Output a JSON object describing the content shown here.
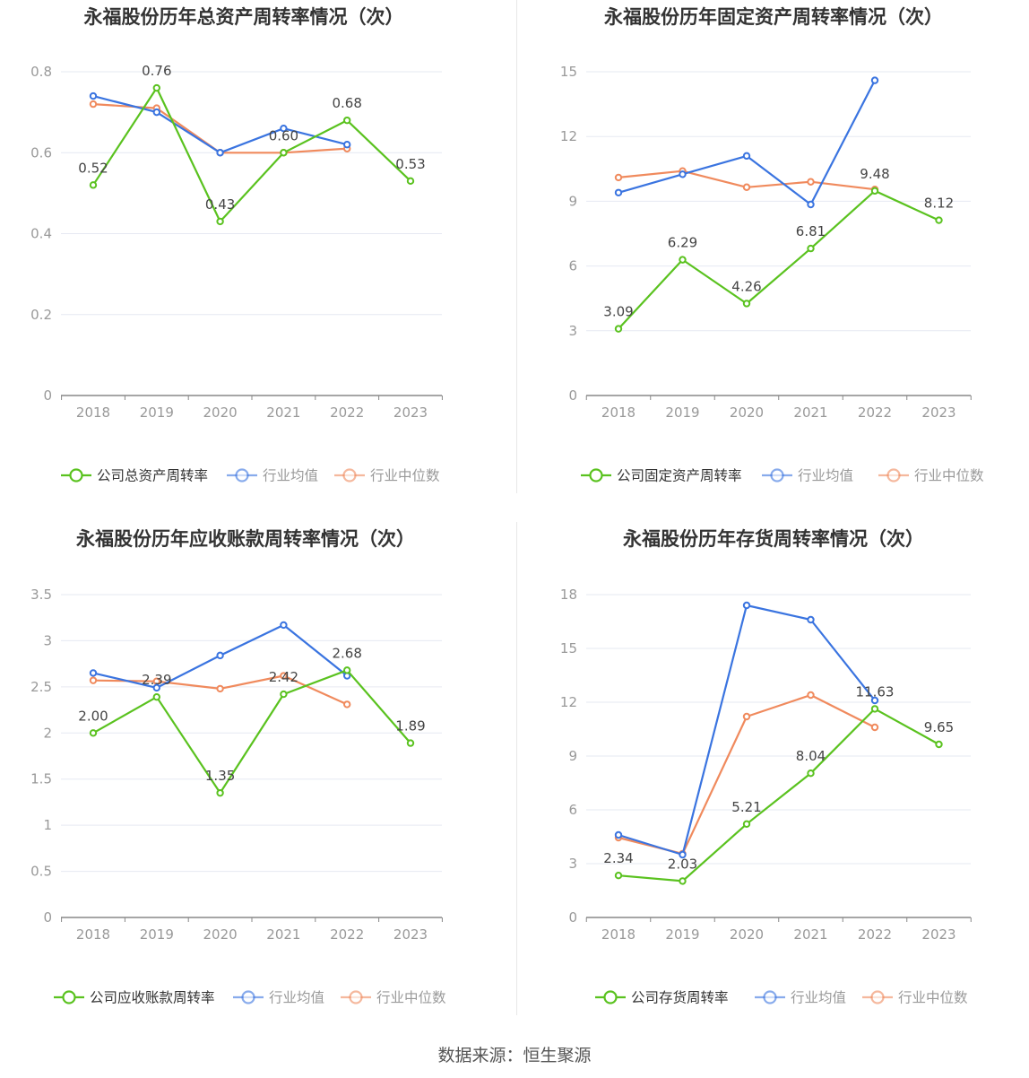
{
  "colors": {
    "company": "#5ac21f",
    "avg": "#3a74e0",
    "median": "#f08a5d",
    "grid": "#e6e9f2",
    "axis": "#888888",
    "tick": "#999999",
    "title": "#333333",
    "label": "#444444"
  },
  "source": "数据来源：恒生聚源",
  "chart_data": [
    {
      "type": "line",
      "title": "永福股份历年总资产周转率情况（次）",
      "categories": [
        "2018",
        "2019",
        "2020",
        "2021",
        "2022",
        "2023"
      ],
      "ylim": [
        0,
        0.8
      ],
      "yticks": [
        "0",
        "0.2",
        "0.4",
        "0.6",
        "0.8"
      ],
      "yticks_values": [
        0,
        0.2,
        0.4,
        0.6,
        0.8
      ],
      "series": [
        {
          "key": "company",
          "name": "公司总资产周转率",
          "values": [
            0.52,
            0.76,
            0.43,
            0.6,
            0.68,
            0.53
          ],
          "labels": [
            "0.52",
            "0.76",
            "0.43",
            "0.60",
            "0.68",
            "0.53"
          ]
        },
        {
          "key": "avg",
          "name": "行业均值",
          "values": [
            0.74,
            0.7,
            0.6,
            0.66,
            0.62,
            null
          ]
        },
        {
          "key": "median",
          "name": "行业中位数",
          "values": [
            0.72,
            0.71,
            0.6,
            0.6,
            0.61,
            null
          ]
        }
      ]
    },
    {
      "type": "line",
      "title": "永福股份历年固定资产周转率情况（次）",
      "categories": [
        "2018",
        "2019",
        "2020",
        "2021",
        "2022",
        "2023"
      ],
      "ylim": [
        0,
        15
      ],
      "yticks": [
        "0",
        "3",
        "6",
        "9",
        "12",
        "15"
      ],
      "yticks_values": [
        0,
        3,
        6,
        9,
        12,
        15
      ],
      "series": [
        {
          "key": "company",
          "name": "公司固定资产周转率",
          "values": [
            3.09,
            6.29,
            4.26,
            6.81,
            9.48,
            8.12
          ],
          "labels": [
            "3.09",
            "6.29",
            "4.26",
            "6.81",
            "9.48",
            "8.12"
          ]
        },
        {
          "key": "avg",
          "name": "行业均值",
          "values": [
            9.4,
            10.25,
            11.1,
            8.85,
            14.6,
            null
          ]
        },
        {
          "key": "median",
          "name": "行业中位数",
          "values": [
            10.1,
            10.4,
            9.65,
            9.9,
            9.55,
            null
          ]
        }
      ]
    },
    {
      "type": "line",
      "title": "永福股份历年应收账款周转率情况（次）",
      "categories": [
        "2018",
        "2019",
        "2020",
        "2021",
        "2022",
        "2023"
      ],
      "ylim": [
        0,
        3.5
      ],
      "yticks": [
        "0",
        "0.5",
        "1",
        "1.5",
        "2",
        "2.5",
        "3",
        "3.5"
      ],
      "yticks_values": [
        0,
        0.5,
        1,
        1.5,
        2,
        2.5,
        3,
        3.5
      ],
      "series": [
        {
          "key": "company",
          "name": "公司应收账款周转率",
          "values": [
            2.0,
            2.39,
            1.35,
            2.42,
            2.68,
            1.89
          ],
          "labels": [
            "2.00",
            "2.39",
            "1.35",
            "2.42",
            "2.68",
            "1.89"
          ]
        },
        {
          "key": "avg",
          "name": "行业均值",
          "values": [
            2.65,
            2.49,
            2.84,
            3.17,
            2.62,
            null
          ]
        },
        {
          "key": "median",
          "name": "行业中位数",
          "values": [
            2.57,
            2.56,
            2.48,
            2.62,
            2.31,
            null
          ]
        }
      ]
    },
    {
      "type": "line",
      "title": "永福股份历年存货周转率情况（次）",
      "categories": [
        "2018",
        "2019",
        "2020",
        "2021",
        "2022",
        "2023"
      ],
      "ylim": [
        0,
        18
      ],
      "yticks": [
        "0",
        "3",
        "6",
        "9",
        "12",
        "15",
        "18"
      ],
      "yticks_values": [
        0,
        3,
        6,
        9,
        12,
        15,
        18
      ],
      "series": [
        {
          "key": "company",
          "name": "公司存货周转率",
          "values": [
            2.34,
            2.03,
            5.21,
            8.04,
            11.63,
            9.65
          ],
          "labels": [
            "2.34",
            "2.03",
            "5.21",
            "8.04",
            "11.63",
            "9.65"
          ]
        },
        {
          "key": "avg",
          "name": "行业均值",
          "values": [
            4.6,
            3.5,
            17.4,
            16.6,
            12.1,
            null
          ]
        },
        {
          "key": "median",
          "name": "行业中位数",
          "values": [
            4.45,
            3.55,
            11.2,
            12.4,
            10.6,
            null
          ]
        }
      ]
    }
  ]
}
